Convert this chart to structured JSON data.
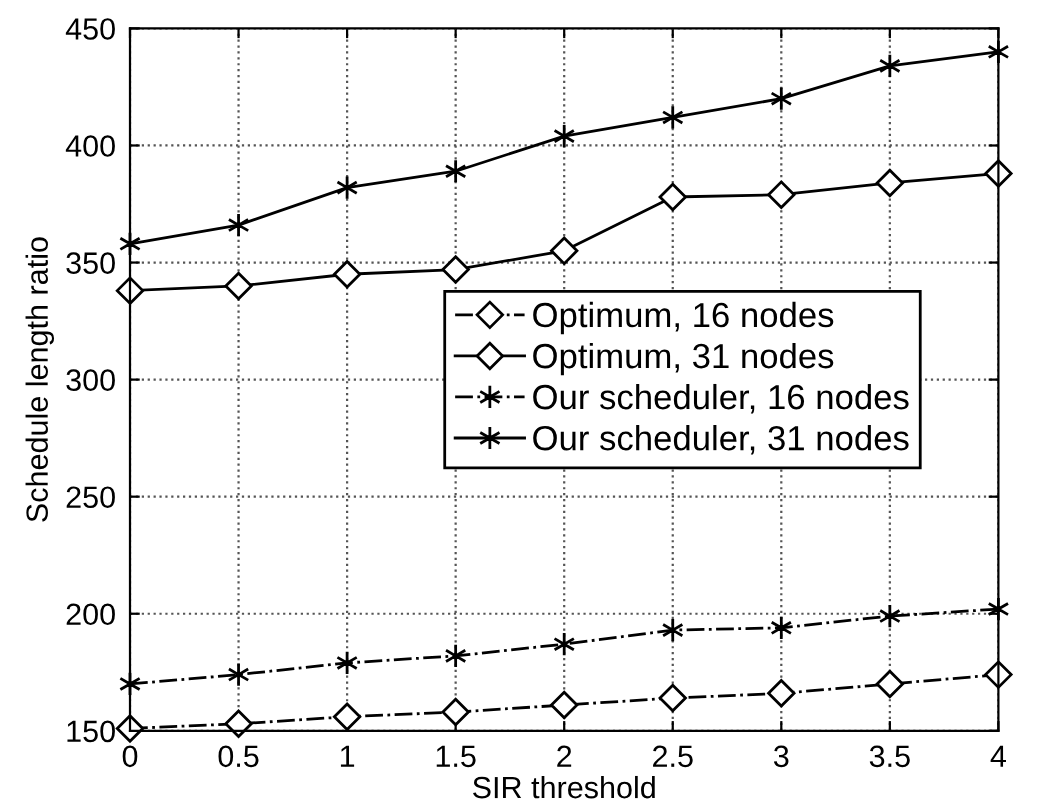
{
  "chart_data": {
    "type": "line",
    "xlabel": "SIR threshold",
    "ylabel": "Schedule length ratio",
    "x": [
      0,
      0.5,
      1,
      1.5,
      2,
      2.5,
      3,
      3.5,
      4
    ],
    "series": [
      {
        "name": "Optimum, 16 nodes",
        "color": "#000000",
        "marker": "diamond",
        "line_style": "dashdot",
        "values": [
          151,
          153,
          156,
          158,
          161,
          164,
          166,
          170,
          174
        ]
      },
      {
        "name": "Optimum, 31 nodes",
        "color": "#000000",
        "marker": "diamond",
        "line_style": "solid",
        "values": [
          338,
          340,
          345,
          347,
          355,
          378,
          379,
          384,
          388
        ]
      },
      {
        "name": "Our scheduler, 16 nodes",
        "color": "#000000",
        "marker": "cross",
        "line_style": "dashdot",
        "values": [
          170,
          174,
          179,
          182,
          187,
          193,
          194,
          199,
          202
        ]
      },
      {
        "name": "Our scheduler, 31 nodes",
        "color": "#000000",
        "marker": "cross",
        "line_style": "solid",
        "values": [
          358,
          366,
          382,
          389,
          404,
          412,
          420,
          434,
          440
        ]
      }
    ],
    "xlim": [
      0,
      4
    ],
    "ylim": [
      150,
      450
    ],
    "xticks": [
      0,
      0.5,
      1,
      1.5,
      2,
      2.5,
      3,
      3.5,
      4
    ],
    "yticks": [
      150,
      200,
      250,
      300,
      350,
      400,
      450
    ],
    "grid": true,
    "legend": "center right"
  }
}
